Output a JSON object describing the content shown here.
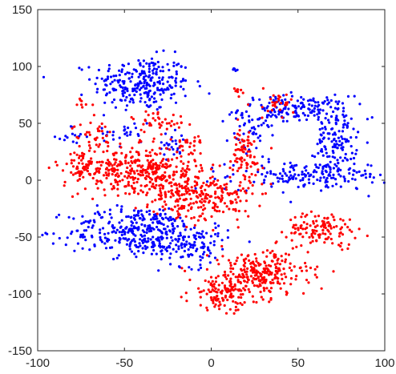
{
  "chart_data": {
    "type": "scatter",
    "title": "",
    "xlabel": "",
    "ylabel": "",
    "xlim": [
      -100,
      100
    ],
    "ylim": [
      -150,
      150
    ],
    "xticks": [
      -100,
      -50,
      0,
      50,
      100
    ],
    "yticks": [
      150,
      100,
      50,
      0,
      -50,
      -100,
      -150
    ],
    "grid": false,
    "legend": "none",
    "series": [
      {
        "color": "#0000ff",
        "clusters": [
          {
            "cx": -40,
            "cy": 85,
            "sx": 14,
            "sy": 12,
            "n": 260
          },
          {
            "cx": -48,
            "cy": 42,
            "sx": 7,
            "sy": 8,
            "n": 25
          },
          {
            "cx": -80,
            "cy": 38,
            "sx": 4,
            "sy": 5,
            "n": 15
          },
          {
            "cx": -22,
            "cy": 32,
            "sx": 5,
            "sy": 6,
            "n": 25
          },
          {
            "cx": 48,
            "cy": 62,
            "sx": 16,
            "sy": 6,
            "n": 170
          },
          {
            "cx": 72,
            "cy": 35,
            "sx": 6,
            "sy": 14,
            "n": 120
          },
          {
            "cx": 58,
            "cy": 4,
            "sx": 24,
            "sy": 6,
            "n": 180
          },
          {
            "cx": 22,
            "cy": 40,
            "sx": 6,
            "sy": 12,
            "n": 40
          },
          {
            "cx": -42,
            "cy": -45,
            "sx": 20,
            "sy": 11,
            "n": 330
          },
          {
            "cx": -10,
            "cy": -58,
            "sx": 10,
            "sy": 9,
            "n": 90
          },
          {
            "cx": -28,
            "cy": -35,
            "sx": 6,
            "sy": 4,
            "n": 20
          },
          {
            "cx": 14,
            "cy": 97,
            "sx": 1,
            "sy": 1,
            "n": 6
          }
        ]
      },
      {
        "color": "#ff0000",
        "clusters": [
          {
            "cx": -45,
            "cy": 10,
            "sx": 20,
            "sy": 10,
            "n": 330
          },
          {
            "cx": -26,
            "cy": -4,
            "sx": 10,
            "sy": 12,
            "n": 130
          },
          {
            "cx": -75,
            "cy": 12,
            "sx": 4,
            "sy": 7,
            "n": 30
          },
          {
            "cx": -68,
            "cy": 40,
            "sx": 6,
            "sy": 6,
            "n": 35
          },
          {
            "cx": -30,
            "cy": 52,
            "sx": 8,
            "sy": 5,
            "n": 40
          },
          {
            "cx": -12,
            "cy": 32,
            "sx": 5,
            "sy": 5,
            "n": 20
          },
          {
            "cx": 0,
            "cy": -15,
            "sx": 12,
            "sy": 10,
            "n": 180
          },
          {
            "cx": 18,
            "cy": 20,
            "sx": 6,
            "sy": 14,
            "n": 80
          },
          {
            "cx": 64,
            "cy": -43,
            "sx": 10,
            "sy": 7,
            "n": 120
          },
          {
            "cx": 28,
            "cy": -82,
            "sx": 14,
            "sy": 10,
            "n": 260
          },
          {
            "cx": 8,
            "cy": -100,
            "sx": 10,
            "sy": 7,
            "n": 120
          },
          {
            "cx": 38,
            "cy": 68,
            "sx": 8,
            "sy": 7,
            "n": 30
          },
          {
            "cx": -75,
            "cy": 68,
            "sx": 3,
            "sy": 3,
            "n": 8
          },
          {
            "cx": 15,
            "cy": 78,
            "sx": 2,
            "sy": 2,
            "n": 8
          }
        ]
      }
    ]
  }
}
